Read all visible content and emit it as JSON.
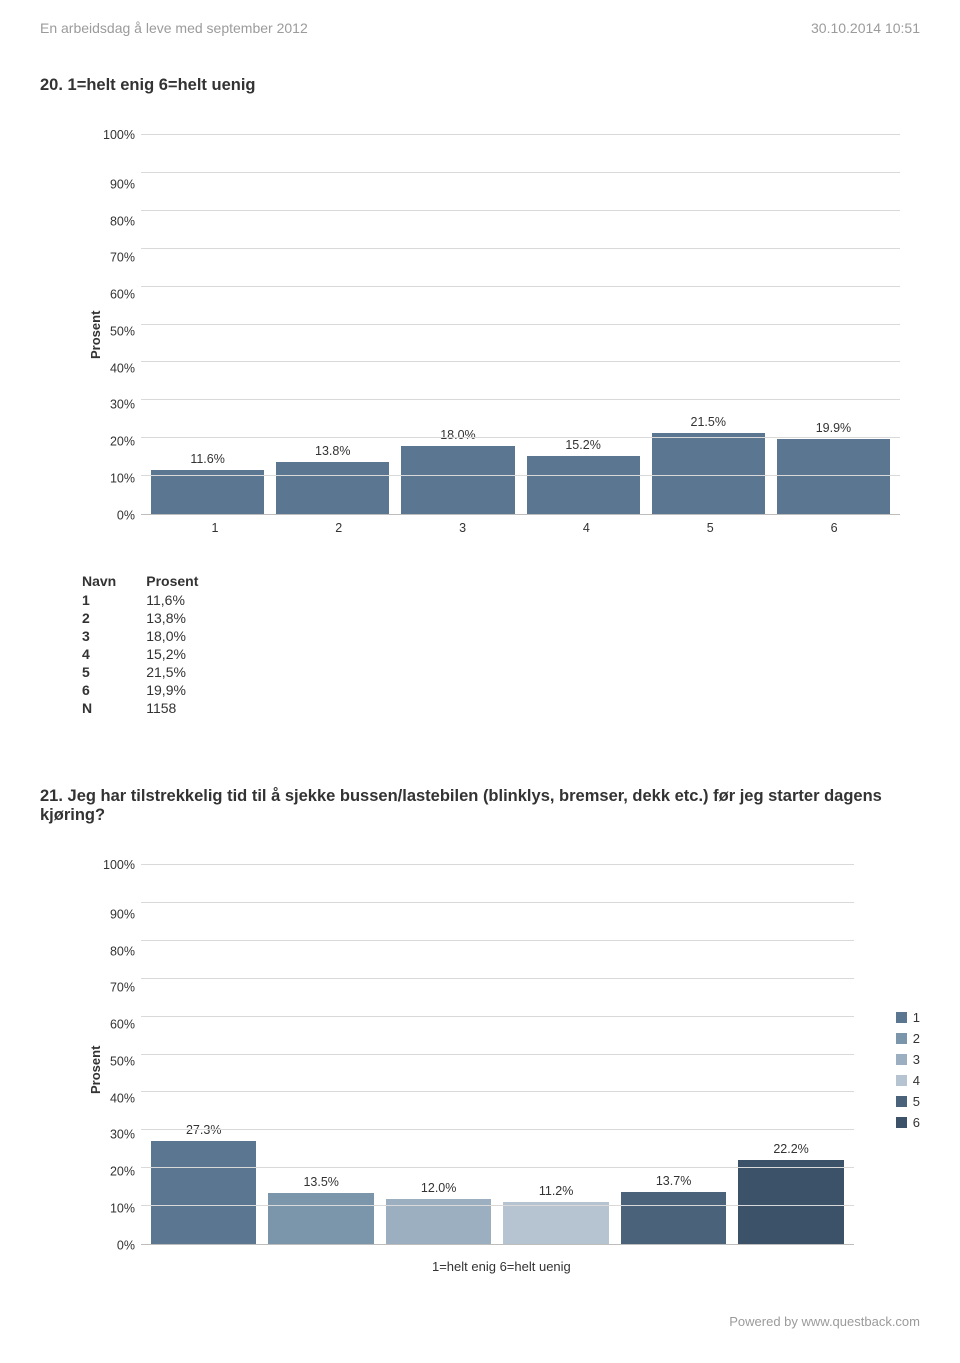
{
  "header": {
    "left": "En arbeidsdag å leve med september 2012",
    "right": "30.10.2014 10:51"
  },
  "footer": "Powered by www.questback.com",
  "chart1": {
    "title": "20. 1=helt enig 6=helt uenig",
    "y_label": "Prosent",
    "ylim": [
      0,
      100
    ],
    "ytick_step": 10,
    "categories": [
      "1",
      "2",
      "3",
      "4",
      "5",
      "6"
    ],
    "values": [
      11.6,
      13.8,
      18.0,
      15.2,
      21.5,
      19.9
    ],
    "value_labels": [
      "11.6%",
      "13.8%",
      "18.0%",
      "15.2%",
      "21.5%",
      "19.9%"
    ],
    "bar_color": "#5b7690",
    "grid_color": "#d9d9d9",
    "axis_color": "#bdbdbd",
    "background": "#ffffff",
    "label_fontsize": 12.5
  },
  "table1": {
    "columns": [
      "Navn",
      "Prosent"
    ],
    "rows": [
      [
        "1",
        "11,6%"
      ],
      [
        "2",
        "13,8%"
      ],
      [
        "3",
        "18,0%"
      ],
      [
        "4",
        "15,2%"
      ],
      [
        "5",
        "21,5%"
      ],
      [
        "6",
        "19,9%"
      ],
      [
        "N",
        "1158"
      ]
    ]
  },
  "chart2": {
    "title": "21. Jeg har tilstrekkelig tid til å sjekke bussen/lastebilen (blinklys, bremser, dekk etc.) før jeg starter dagens kjøring?",
    "y_label": "Prosent",
    "x_title": "1=helt enig 6=helt uenig",
    "ylim": [
      0,
      100
    ],
    "ytick_step": 10,
    "categories": [
      "1",
      "2",
      "3",
      "4",
      "5",
      "6"
    ],
    "values": [
      27.3,
      13.5,
      12.0,
      11.2,
      13.7,
      22.2
    ],
    "value_labels": [
      "27.3%",
      "13.5%",
      "12.0%",
      "11.2%",
      "13.7%",
      "22.2%"
    ],
    "bar_colors": [
      "#5b7690",
      "#7b95ab",
      "#9cafc1",
      "#b6c3d0",
      "#4a627a",
      "#3c5269"
    ],
    "grid_color": "#d9d9d9",
    "axis_color": "#bdbdbd",
    "background": "#ffffff",
    "legend_labels": [
      "1",
      "2",
      "3",
      "4",
      "5",
      "6"
    ],
    "label_fontsize": 12.5
  }
}
